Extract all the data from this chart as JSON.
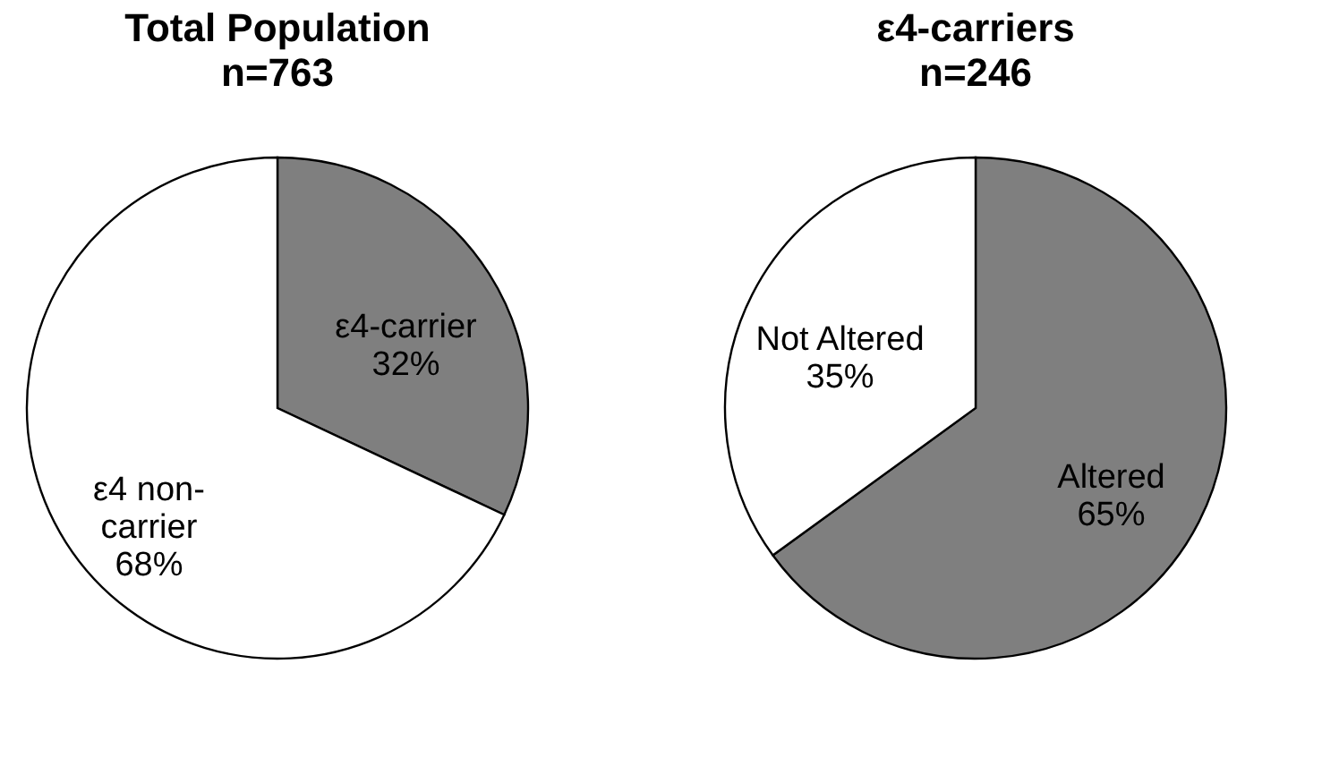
{
  "chart_data": [
    {
      "type": "pie",
      "title": "Total Population",
      "subtitle": "n=763",
      "categories": [
        "ε4-carrier",
        "ε4 non-carrier"
      ],
      "values": [
        32,
        68
      ],
      "colors": [
        "#7f7f7f",
        "#ffffff"
      ],
      "value_labels": [
        "32%",
        "68%"
      ],
      "legend": false
    },
    {
      "type": "pie",
      "title": "ε4-carriers",
      "subtitle": "n=246",
      "categories": [
        "Altered",
        "Not Altered"
      ],
      "values": [
        65,
        35
      ],
      "colors": [
        "#7f7f7f",
        "#ffffff"
      ],
      "value_labels": [
        "65%",
        "35%"
      ],
      "legend": false
    }
  ]
}
